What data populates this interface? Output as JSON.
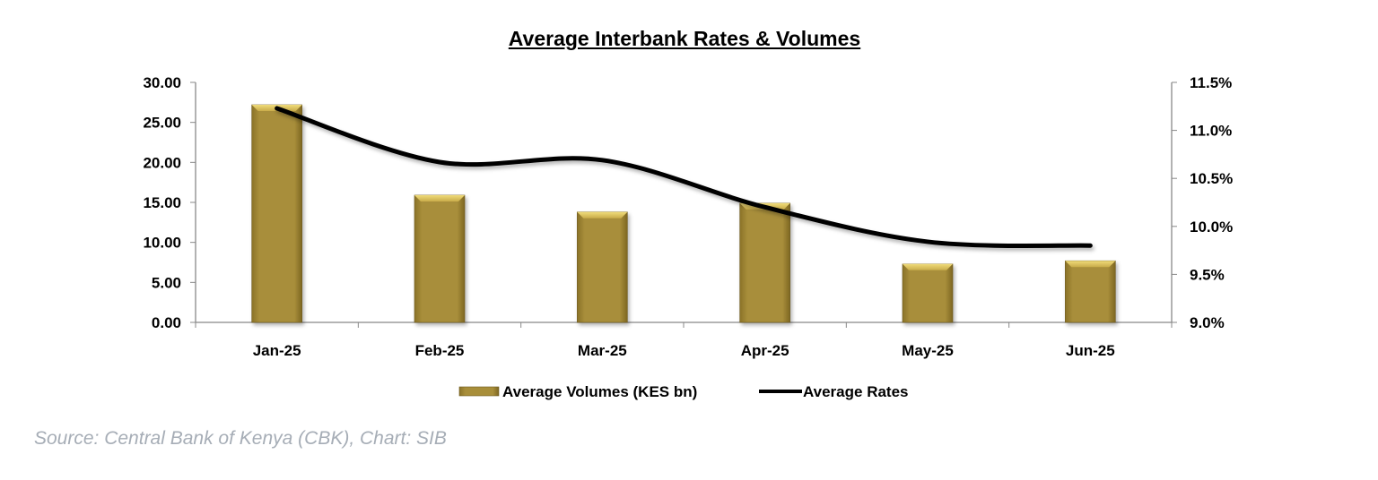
{
  "chart_data": {
    "type": "bar",
    "title": "Average Interbank Rates & Volumes",
    "categories": [
      "Jan-25",
      "Feb-25",
      "Mar-25",
      "Apr-25",
      "May-25",
      "Jun-25"
    ],
    "series": [
      {
        "name": "Average Volumes (KES bn)",
        "type": "bar",
        "axis": "left",
        "values": [
          27.2,
          15.9,
          13.8,
          14.9,
          7.3,
          7.7
        ],
        "color": "#a88e3a"
      },
      {
        "name": "Average Rates",
        "type": "line",
        "axis": "right",
        "values": [
          11.23,
          10.67,
          10.69,
          10.2,
          9.84,
          9.8
        ],
        "color": "#000000"
      }
    ],
    "y_left": {
      "ylim": [
        0,
        30
      ],
      "ticks": [
        "0.00",
        "5.00",
        "10.00",
        "15.00",
        "20.00",
        "25.00",
        "30.00"
      ]
    },
    "y_right": {
      "ylim": [
        9.0,
        11.5
      ],
      "ticks": [
        "9.0%",
        "9.5%",
        "10.0%",
        "10.5%",
        "11.0%",
        "11.5%"
      ]
    },
    "xlabel": "",
    "ylabel": "",
    "legend_position": "bottom",
    "grid": false
  },
  "source": "Source: Central Bank of Kenya (CBK), Chart: SIB"
}
